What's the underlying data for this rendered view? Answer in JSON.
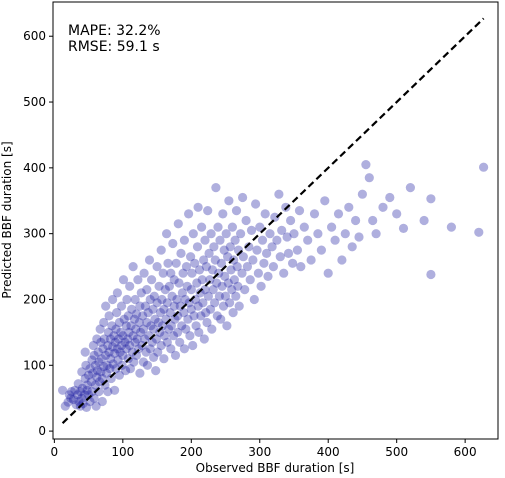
{
  "chart_data": {
    "type": "scatter",
    "title": "",
    "xlabel": "Observed BBF duration [s]",
    "ylabel": "Predicted BBF duration [s]",
    "xlim": [
      -2,
      648
    ],
    "ylim": [
      -12,
      652
    ],
    "xticks": [
      0,
      100,
      200,
      300,
      400,
      500,
      600
    ],
    "yticks": [
      0,
      100,
      200,
      300,
      400,
      500,
      600
    ],
    "grid": false,
    "annotations": [
      "MAPE: 32.2%",
      "RMSE: 59.1 s"
    ],
    "reference_line": {
      "style": "dashed",
      "color": "#000000",
      "x": [
        12,
        627
      ],
      "y": [
        12,
        627
      ]
    },
    "marker_color": "#1a1aa0",
    "marker_alpha": 0.35,
    "points": [
      [
        12,
        62
      ],
      [
        16,
        38
      ],
      [
        20,
        44
      ],
      [
        22,
        55
      ],
      [
        24,
        50
      ],
      [
        25,
        60
      ],
      [
        28,
        48
      ],
      [
        30,
        62
      ],
      [
        32,
        40
      ],
      [
        34,
        55
      ],
      [
        35,
        72
      ],
      [
        36,
        45
      ],
      [
        38,
        38
      ],
      [
        38,
        60
      ],
      [
        40,
        50
      ],
      [
        40,
        90
      ],
      [
        41,
        65
      ],
      [
        42,
        42
      ],
      [
        44,
        55
      ],
      [
        45,
        80
      ],
      [
        45,
        120
      ],
      [
        46,
        100
      ],
      [
        47,
        36
      ],
      [
        48,
        70
      ],
      [
        48,
        62
      ],
      [
        50,
        55
      ],
      [
        50,
        85
      ],
      [
        52,
        95
      ],
      [
        52,
        45
      ],
      [
        54,
        75
      ],
      [
        55,
        108
      ],
      [
        55,
        60
      ],
      [
        56,
        88
      ],
      [
        57,
        130
      ],
      [
        58,
        50
      ],
      [
        58,
        115
      ],
      [
        60,
        70
      ],
      [
        60,
        100
      ],
      [
        61,
        38
      ],
      [
        62,
        82
      ],
      [
        62,
        140
      ],
      [
        63,
        92
      ],
      [
        64,
        120
      ],
      [
        65,
        60
      ],
      [
        65,
        105
      ],
      [
        66,
        75
      ],
      [
        67,
        155
      ],
      [
        68,
        90
      ],
      [
        68,
        135
      ],
      [
        69,
        110
      ],
      [
        70,
        45
      ],
      [
        70,
        80
      ],
      [
        71,
        125
      ],
      [
        72,
        98
      ],
      [
        72,
        165
      ],
      [
        73,
        140
      ],
      [
        74,
        70
      ],
      [
        75,
        115
      ],
      [
        75,
        190
      ],
      [
        76,
        88
      ],
      [
        77,
        100
      ],
      [
        78,
        130
      ],
      [
        78,
        60
      ],
      [
        79,
        150
      ],
      [
        80,
        120
      ],
      [
        80,
        175
      ],
      [
        81,
        95
      ],
      [
        82,
        140
      ],
      [
        82,
        110
      ],
      [
        83,
        80
      ],
      [
        84,
        160
      ],
      [
        85,
        128
      ],
      [
        85,
        200
      ],
      [
        86,
        102
      ],
      [
        87,
        145
      ],
      [
        88,
        118
      ],
      [
        88,
        62
      ],
      [
        89,
        135
      ],
      [
        90,
        155
      ],
      [
        90,
        95
      ],
      [
        91,
        180
      ],
      [
        92,
        125
      ],
      [
        92,
        210
      ],
      [
        93,
        108
      ],
      [
        94,
        140
      ],
      [
        95,
        165
      ],
      [
        95,
        85
      ],
      [
        96,
        120
      ],
      [
        97,
        150
      ],
      [
        98,
        130
      ],
      [
        98,
        190
      ],
      [
        99,
        100
      ],
      [
        100,
        145
      ],
      [
        100,
        115
      ],
      [
        101,
        230
      ],
      [
        102,
        170
      ],
      [
        103,
        135
      ],
      [
        104,
        92
      ],
      [
        105,
        160
      ],
      [
        105,
        125
      ],
      [
        106,
        200
      ],
      [
        107,
        140
      ],
      [
        108,
        110
      ],
      [
        108,
        175
      ],
      [
        109,
        150
      ],
      [
        110,
        130
      ],
      [
        110,
        220
      ],
      [
        111,
        95
      ],
      [
        112,
        160
      ],
      [
        113,
        185
      ],
      [
        114,
        120
      ],
      [
        115,
        145
      ],
      [
        115,
        250
      ],
      [
        116,
        105
      ],
      [
        117,
        170
      ],
      [
        118,
        135
      ],
      [
        118,
        200
      ],
      [
        119,
        155
      ],
      [
        120,
        115
      ],
      [
        120,
        178
      ],
      [
        121,
        140
      ],
      [
        122,
        230
      ],
      [
        123,
        125
      ],
      [
        124,
        165
      ],
      [
        125,
        190
      ],
      [
        125,
        88
      ],
      [
        126,
        150
      ],
      [
        127,
        210
      ],
      [
        128,
        130
      ],
      [
        129,
        175
      ],
      [
        130,
        105
      ],
      [
        130,
        155
      ],
      [
        131,
        240
      ],
      [
        132,
        140
      ],
      [
        133,
        190
      ],
      [
        134,
        120
      ],
      [
        135,
        165
      ],
      [
        135,
        215
      ],
      [
        136,
        100
      ],
      [
        137,
        180
      ],
      [
        138,
        145
      ],
      [
        139,
        260
      ],
      [
        140,
        125
      ],
      [
        140,
        200
      ],
      [
        141,
        160
      ],
      [
        142,
        230
      ],
      [
        143,
        135
      ],
      [
        144,
        185
      ],
      [
        145,
        112
      ],
      [
        145,
        155
      ],
      [
        146,
        205
      ],
      [
        147,
        170
      ],
      [
        148,
        92
      ],
      [
        149,
        140
      ],
      [
        150,
        195
      ],
      [
        150,
        250
      ],
      [
        151,
        120
      ],
      [
        152,
        165
      ],
      [
        153,
        220
      ],
      [
        154,
        150
      ],
      [
        155,
        180
      ],
      [
        156,
        130
      ],
      [
        156,
        275
      ],
      [
        157,
        200
      ],
      [
        158,
        160
      ],
      [
        159,
        240
      ],
      [
        160,
        110
      ],
      [
        160,
        185
      ],
      [
        161,
        145
      ],
      [
        162,
        215
      ],
      [
        163,
        170
      ],
      [
        164,
        300
      ],
      [
        165,
        135
      ],
      [
        165,
        195
      ],
      [
        166,
        255
      ],
      [
        167,
        155
      ],
      [
        168,
        220
      ],
      [
        169,
        180
      ],
      [
        170,
        125
      ],
      [
        170,
        240
      ],
      [
        171,
        160
      ],
      [
        172,
        205
      ],
      [
        173,
        285
      ],
      [
        174,
        145
      ],
      [
        175,
        190
      ],
      [
        175,
        230
      ],
      [
        176,
        170
      ],
      [
        177,
        115
      ],
      [
        178,
        255
      ],
      [
        179,
        200
      ],
      [
        180,
        150
      ],
      [
        180,
        175
      ],
      [
        181,
        315
      ],
      [
        182,
        225
      ],
      [
        183,
        135
      ],
      [
        184,
        190
      ],
      [
        185,
        270
      ],
      [
        186,
        160
      ],
      [
        187,
        210
      ],
      [
        188,
        240
      ],
      [
        189,
        180
      ],
      [
        190,
        125
      ],
      [
        190,
        290
      ],
      [
        191,
        200
      ],
      [
        192,
        155
      ],
      [
        193,
        250
      ],
      [
        194,
        220
      ],
      [
        195,
        170
      ],
      [
        196,
        330
      ],
      [
        197,
        195
      ],
      [
        198,
        145
      ],
      [
        199,
        265
      ],
      [
        200,
        185
      ],
      [
        200,
        215
      ],
      [
        201,
        240
      ],
      [
        202,
        130
      ],
      [
        203,
        300
      ],
      [
        204,
        175
      ],
      [
        205,
        255
      ],
      [
        206,
        200
      ],
      [
        207,
        160
      ],
      [
        208,
        225
      ],
      [
        209,
        280
      ],
      [
        210,
        190
      ],
      [
        210,
        340
      ],
      [
        211,
        150
      ],
      [
        212,
        245
      ],
      [
        213,
        210
      ],
      [
        214,
        175
      ],
      [
        215,
        310
      ],
      [
        216,
        230
      ],
      [
        217,
        195
      ],
      [
        218,
        260
      ],
      [
        219,
        140
      ],
      [
        220,
        215
      ],
      [
        220,
        290
      ],
      [
        221,
        180
      ],
      [
        222,
        250
      ],
      [
        223,
        165
      ],
      [
        224,
        335
      ],
      [
        225,
        205
      ],
      [
        226,
        270
      ],
      [
        227,
        230
      ],
      [
        228,
        185
      ],
      [
        229,
        300
      ],
      [
        230,
        155
      ],
      [
        231,
        245
      ],
      [
        232,
        215
      ],
      [
        233,
        280
      ],
      [
        234,
        195
      ],
      [
        235,
        260
      ],
      [
        236,
        370
      ],
      [
        237,
        225
      ],
      [
        238,
        175
      ],
      [
        239,
        310
      ],
      [
        240,
        240
      ],
      [
        241,
        205
      ],
      [
        242,
        290
      ],
      [
        243,
        170
      ],
      [
        244,
        255
      ],
      [
        245,
        220
      ],
      [
        246,
        330
      ],
      [
        247,
        190
      ],
      [
        248,
        275
      ],
      [
        249,
        235
      ],
      [
        250,
        205
      ],
      [
        251,
        300
      ],
      [
        252,
        160
      ],
      [
        253,
        265
      ],
      [
        254,
        225
      ],
      [
        255,
        350
      ],
      [
        256,
        195
      ],
      [
        257,
        280
      ],
      [
        258,
        245
      ],
      [
        259,
        215
      ],
      [
        260,
        310
      ],
      [
        261,
        180
      ],
      [
        262,
        260
      ],
      [
        263,
        230
      ],
      [
        264,
        290
      ],
      [
        265,
        205
      ],
      [
        266,
        335
      ],
      [
        267,
        250
      ],
      [
        268,
        220
      ],
      [
        269,
        275
      ],
      [
        270,
        190
      ],
      [
        272,
        300
      ],
      [
        274,
        240
      ],
      [
        275,
        355
      ],
      [
        276,
        265
      ],
      [
        278,
        215
      ],
      [
        280,
        320
      ],
      [
        282,
        250
      ],
      [
        284,
        280
      ],
      [
        286,
        230
      ],
      [
        288,
        305
      ],
      [
        290,
        260
      ],
      [
        292,
        200
      ],
      [
        294,
        345
      ],
      [
        296,
        275
      ],
      [
        298,
        240
      ],
      [
        300,
        310
      ],
      [
        302,
        220
      ],
      [
        304,
        290
      ],
      [
        306,
        255
      ],
      [
        308,
        330
      ],
      [
        310,
        270
      ],
      [
        312,
        235
      ],
      [
        315,
        300
      ],
      [
        318,
        280
      ],
      [
        320,
        250
      ],
      [
        322,
        325
      ],
      [
        325,
        290
      ],
      [
        328,
        360
      ],
      [
        330,
        265
      ],
      [
        332,
        305
      ],
      [
        335,
        240
      ],
      [
        338,
        340
      ],
      [
        340,
        295
      ],
      [
        342,
        270
      ],
      [
        345,
        320
      ],
      [
        348,
        255
      ],
      [
        350,
        300
      ],
      [
        355,
        275
      ],
      [
        358,
        335
      ],
      [
        360,
        250
      ],
      [
        365,
        310
      ],
      [
        370,
        290
      ],
      [
        375,
        260
      ],
      [
        380,
        330
      ],
      [
        385,
        300
      ],
      [
        390,
        275
      ],
      [
        395,
        350
      ],
      [
        400,
        240
      ],
      [
        405,
        310
      ],
      [
        410,
        290
      ],
      [
        415,
        330
      ],
      [
        420,
        260
      ],
      [
        425,
        300
      ],
      [
        430,
        340
      ],
      [
        435,
        280
      ],
      [
        440,
        320
      ],
      [
        445,
        295
      ],
      [
        450,
        360
      ],
      [
        455,
        405
      ],
      [
        460,
        385
      ],
      [
        465,
        320
      ],
      [
        470,
        300
      ],
      [
        480,
        340
      ],
      [
        490,
        355
      ],
      [
        500,
        330
      ],
      [
        510,
        308
      ],
      [
        520,
        370
      ],
      [
        540,
        320
      ],
      [
        550,
        353
      ],
      [
        550,
        238
      ],
      [
        580,
        310
      ],
      [
        620,
        302
      ],
      [
        627,
        401
      ]
    ]
  }
}
